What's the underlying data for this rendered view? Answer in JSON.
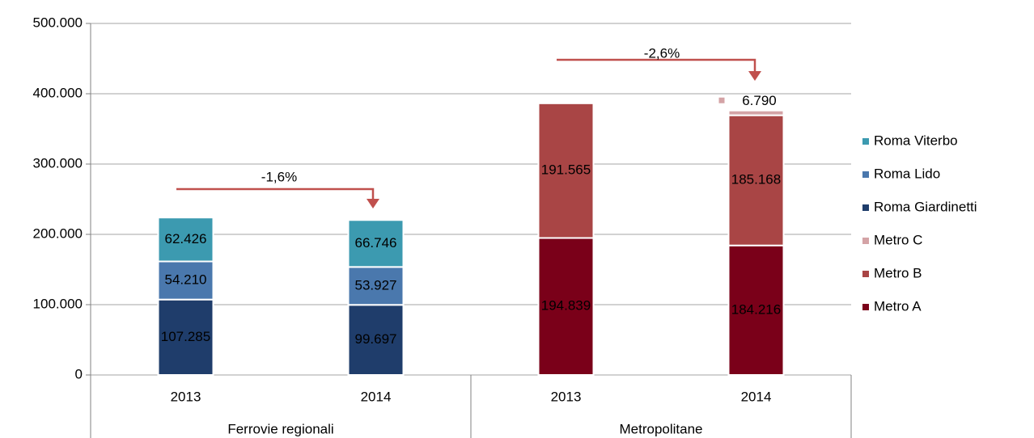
{
  "chart_data": {
    "type": "stacked_bar",
    "categories": [
      "2013",
      "2014",
      "2013",
      "2014"
    ],
    "groups": [
      "Ferrovie regionali",
      "Metropolitane"
    ],
    "series": [
      {
        "name": "Metro A",
        "color": "#7a0019",
        "label_color": "#ffffff",
        "values": [
          null,
          null,
          194839,
          184216
        ],
        "value_labels": [
          null,
          null,
          "194.839",
          "184.216"
        ]
      },
      {
        "name": "Metro B",
        "color": "#a94545",
        "label_color": "#ffffff",
        "values": [
          null,
          null,
          191565,
          185168
        ],
        "value_labels": [
          null,
          null,
          "191.565",
          "185.168"
        ]
      },
      {
        "name": "Metro C",
        "color": "#d4a3a6",
        "label_color": "#000000",
        "values": [
          null,
          null,
          null,
          6790
        ],
        "value_labels": [
          null,
          null,
          null,
          "6.790"
        ]
      },
      {
        "name": "Roma Giardinetti",
        "color": "#1f3d6b",
        "label_color": "#ffffff",
        "values": [
          107285,
          99697,
          null,
          null
        ],
        "value_labels": [
          "107.285",
          "99.697",
          null,
          null
        ]
      },
      {
        "name": "Roma Lido",
        "color": "#4a78ad",
        "label_color": "#ffffff",
        "values": [
          54210,
          53927,
          null,
          null
        ],
        "value_labels": [
          "54.210",
          "53.927",
          null,
          null
        ]
      },
      {
        "name": "Roma Viterbo",
        "color": "#3c9ab0",
        "label_color": "#000000",
        "values": [
          62426,
          66746,
          null,
          null
        ],
        "value_labels": [
          "62.426",
          "66.746",
          null,
          null
        ]
      }
    ],
    "ylim": [
      0,
      500000
    ],
    "yticks": [
      0,
      {
        "value": 100000,
        "label": "100.000"
      },
      {
        "value": 200000,
        "label": "200.000"
      },
      {
        "value": 300000,
        "label": "300.000"
      },
      {
        "value": 400000,
        "label": "400.000"
      },
      {
        "value": 500000,
        "label": "500.000"
      }
    ],
    "grid": true,
    "legend": "right",
    "annotations": [
      {
        "text": "-1,6%",
        "color": "#c0504d"
      },
      {
        "text": "-2,6%",
        "color": "#c0504d"
      }
    ]
  }
}
